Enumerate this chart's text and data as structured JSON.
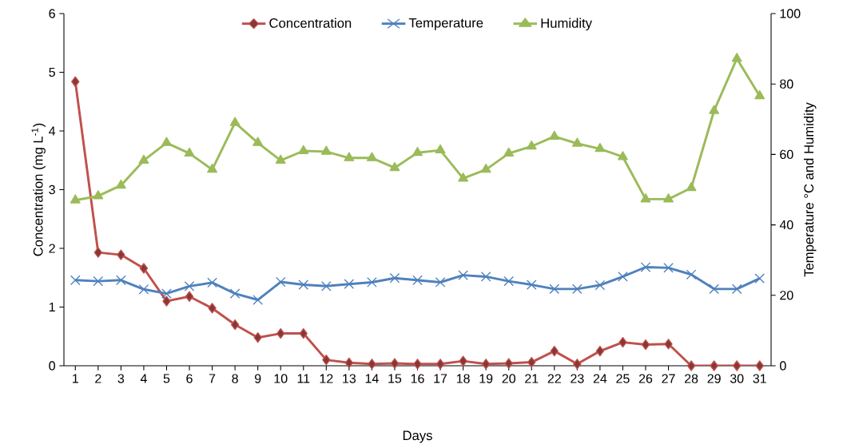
{
  "chart_data": {
    "type": "line",
    "xlabel": "Days",
    "ylabel": "Concentration (mg L$^{-1}$)",
    "y2label": "Temperature °C and Humidity",
    "categories": [
      "1",
      "2",
      "3",
      "4",
      "5",
      "6",
      "7",
      "8",
      "9",
      "10",
      "11",
      "12",
      "13",
      "14",
      "15",
      "16",
      "17",
      "18",
      "19",
      "20",
      "21",
      "22",
      "23",
      "24",
      "25",
      "26",
      "27",
      "28",
      "29",
      "30",
      "31"
    ],
    "series": [
      {
        "name": "Concentration",
        "color": "#c0504d",
        "marker": "diamond",
        "values": [
          4.84,
          1.93,
          1.89,
          1.66,
          1.1,
          1.18,
          0.98,
          0.7,
          0.48,
          0.55,
          0.55,
          0.1,
          0.05,
          0.03,
          0.04,
          0.03,
          0.03,
          0.08,
          0.03,
          0.04,
          0.06,
          0.25,
          0.03,
          0.25,
          0.4,
          0.36,
          0.37,
          0,
          0,
          0,
          0
        ]
      },
      {
        "name": "Temperature",
        "color": "#4f81bd",
        "marker": "cross",
        "axis": "y2",
        "values": [
          24.3,
          24.0,
          24.3,
          21.7,
          20.5,
          22.6,
          23.6,
          20.5,
          18.7,
          23.8,
          23.0,
          22.6,
          23.2,
          23.7,
          24.9,
          24.3,
          23.7,
          25.7,
          25.3,
          24.0,
          23.0,
          21.8,
          21.8,
          22.9,
          25.3,
          28.0,
          27.8,
          25.9,
          21.8,
          21.8,
          24.8
        ]
      },
      {
        "name": "Humidity",
        "color": "#9bbb59",
        "marker": "triangle",
        "axis": "y2",
        "values": [
          47.0,
          48.2,
          51.2,
          58.3,
          63.3,
          60.3,
          55.7,
          69.0,
          63.3,
          58.3,
          61.0,
          60.8,
          59.0,
          59.0,
          56.2,
          60.5,
          61.2,
          53.2,
          55.7,
          60.3,
          62.3,
          65.1,
          63.1,
          61.6,
          59.3,
          47.3,
          47.3,
          50.5,
          72.4,
          87.2,
          76.6
        ]
      }
    ],
    "ylim": [
      0,
      6
    ],
    "yticks": [
      0,
      1,
      2,
      3,
      4,
      5,
      6
    ],
    "y2lim": [
      0,
      100
    ],
    "y2ticks": [
      0,
      20,
      40,
      60,
      80,
      100
    ],
    "legend": "top",
    "grid": false
  }
}
